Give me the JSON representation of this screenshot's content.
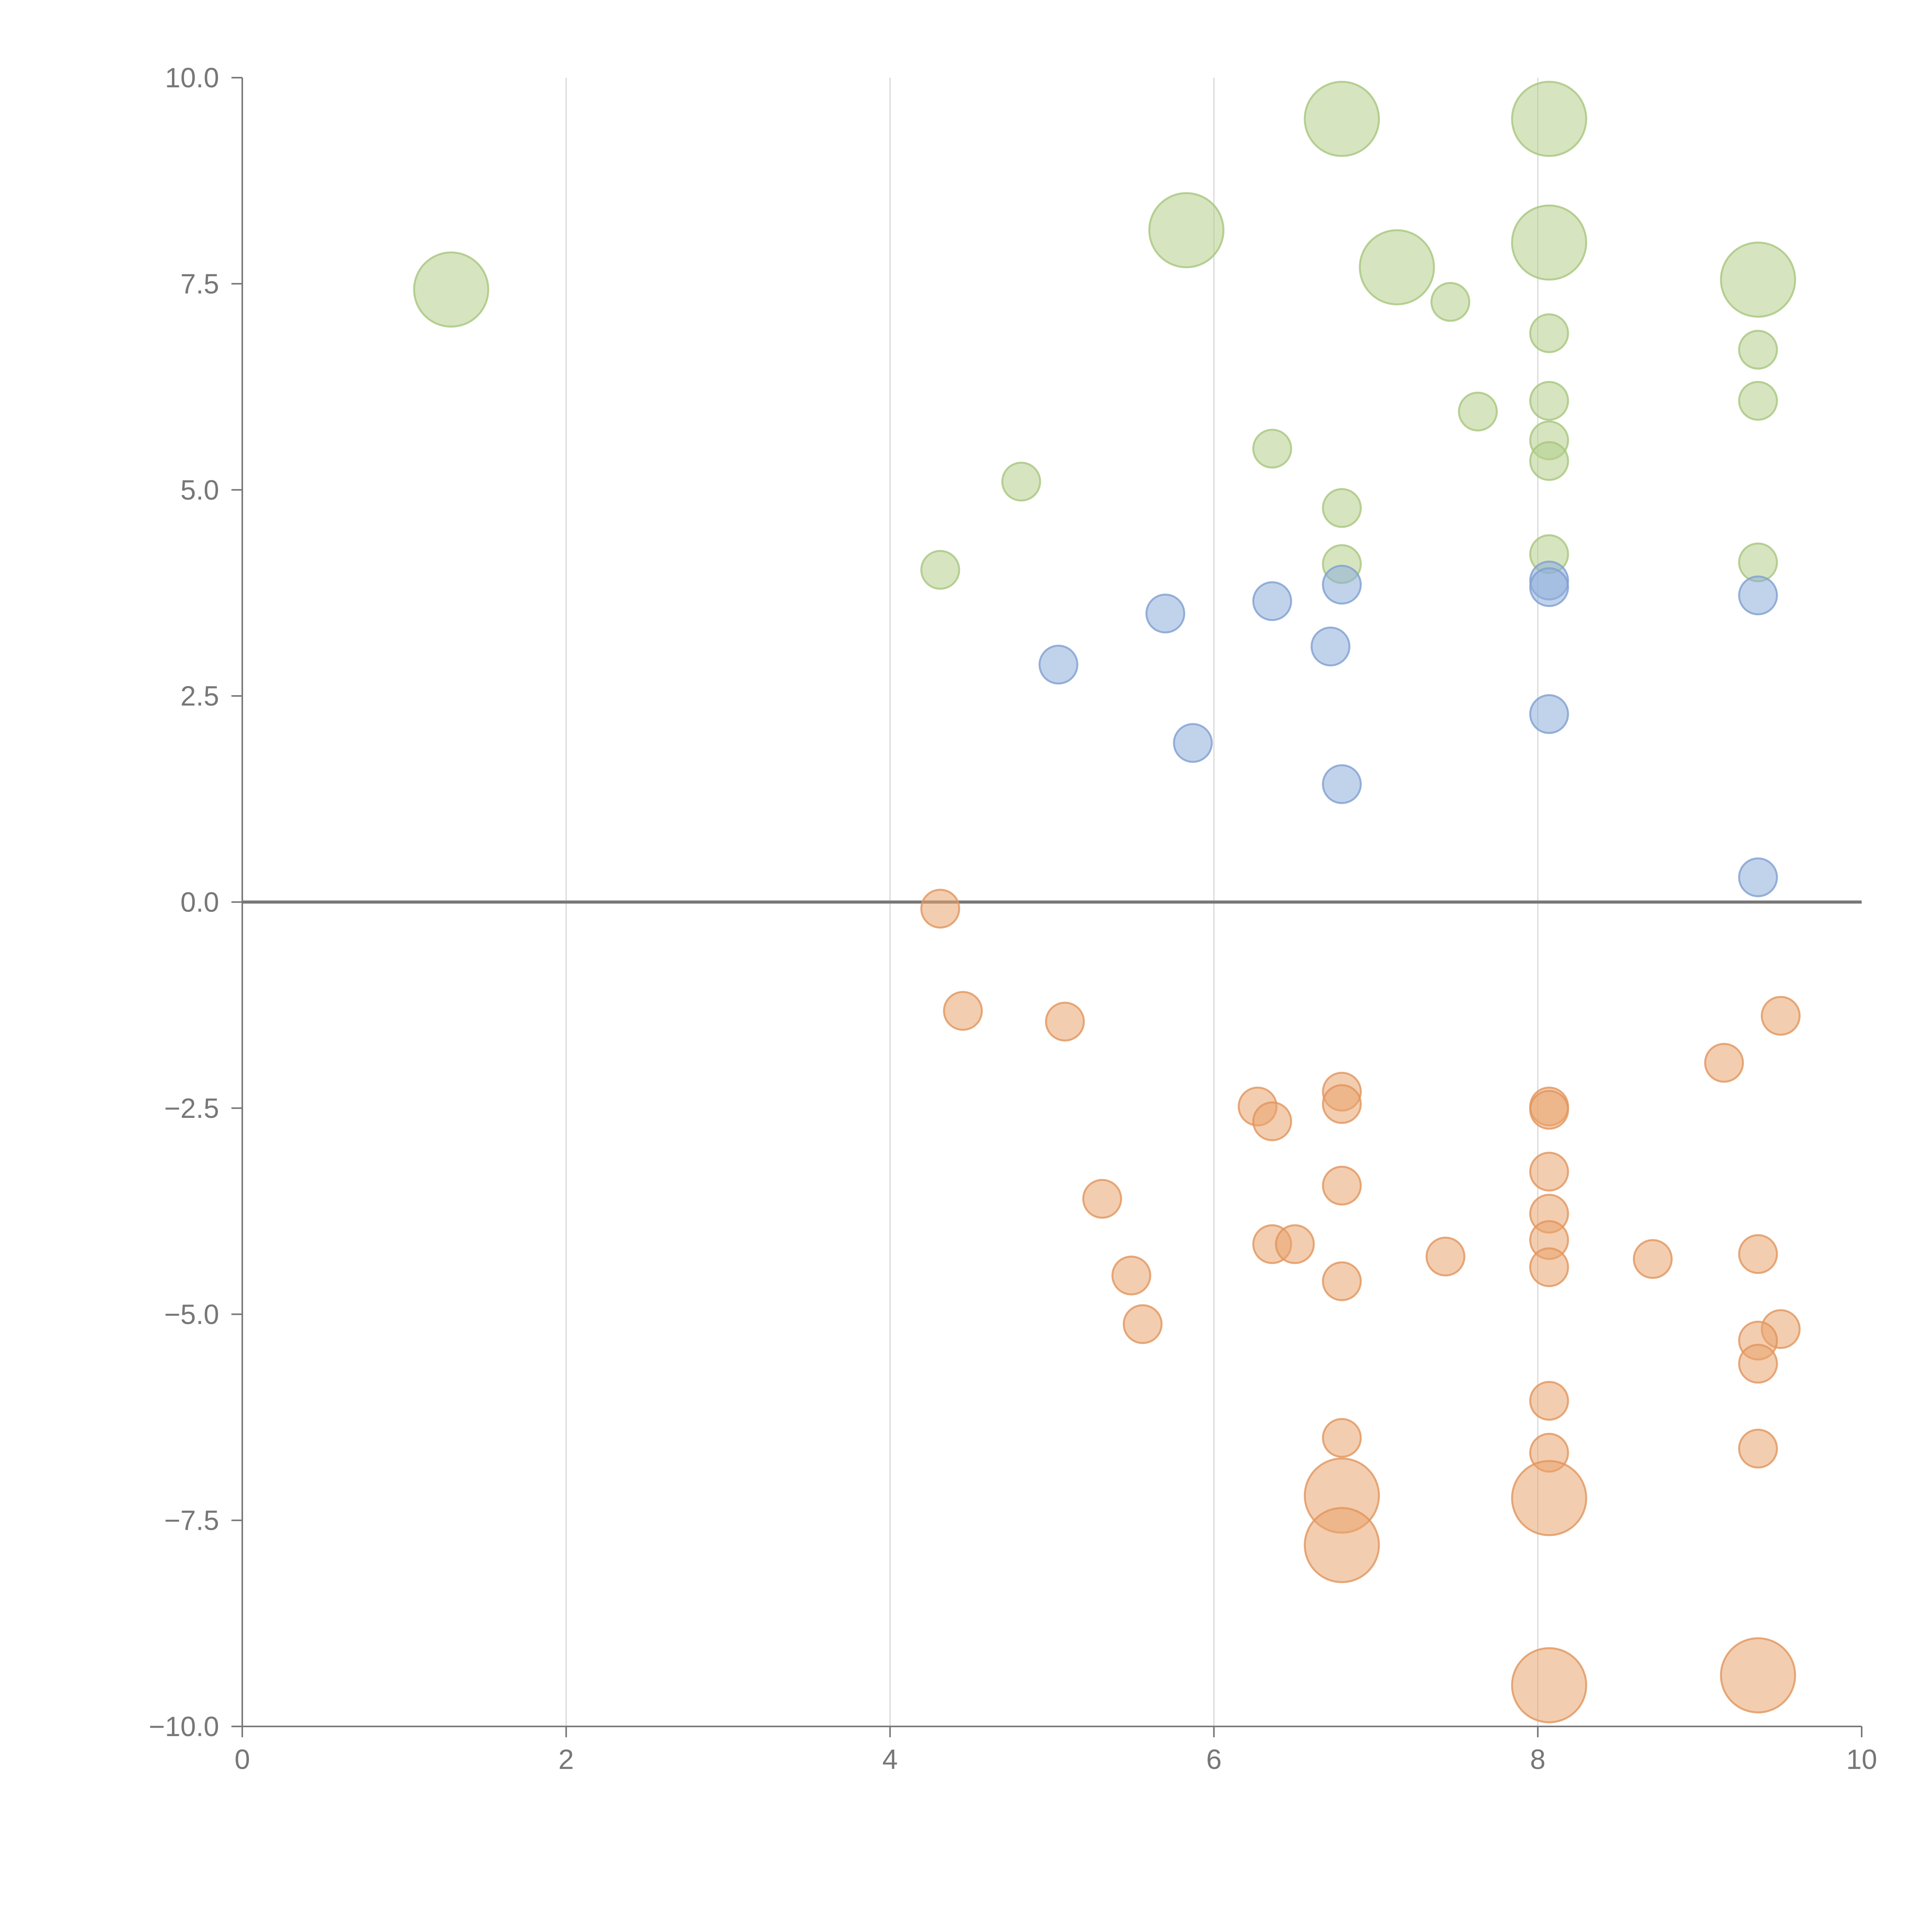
{
  "chart_data": {
    "type": "scatter",
    "title": "",
    "xlabel": "",
    "ylabel": "",
    "xlim": [
      0,
      10
    ],
    "ylim": [
      -10,
      10
    ],
    "x_ticks": [
      0,
      2,
      4,
      6,
      8,
      10
    ],
    "x_tick_labels": [
      "0",
      "2",
      "4",
      "6",
      "8",
      "10"
    ],
    "y_ticks": [
      10,
      7.5,
      5,
      2.5,
      0,
      -2.5,
      -5,
      -7.5,
      -10
    ],
    "y_tick_labels": [
      "10.0",
      "7.5",
      "5.0",
      "2.5",
      "0.0",
      "−2.5",
      "−5.0",
      "−7.5",
      "−10.0"
    ],
    "vertical_grid": true,
    "horizontal_grid": false,
    "zero_line": true,
    "series": [
      {
        "name": "green",
        "fill": "#b5d08c",
        "stroke": "#a7c67d",
        "points": [
          {
            "x": 1.29,
            "y": 7.43,
            "size": "large"
          },
          {
            "x": 5.83,
            "y": 8.15,
            "size": "large"
          },
          {
            "x": 6.79,
            "y": 9.5,
            "size": "large"
          },
          {
            "x": 8.07,
            "y": 9.5,
            "size": "large"
          },
          {
            "x": 8.07,
            "y": 8.0,
            "size": "large"
          },
          {
            "x": 7.13,
            "y": 7.7,
            "size": "large"
          },
          {
            "x": 9.36,
            "y": 7.55,
            "size": "large"
          },
          {
            "x": 7.46,
            "y": 7.28,
            "size": "small"
          },
          {
            "x": 8.07,
            "y": 6.9,
            "size": "small"
          },
          {
            "x": 9.36,
            "y": 6.7,
            "size": "small"
          },
          {
            "x": 8.07,
            "y": 6.08,
            "size": "small"
          },
          {
            "x": 9.36,
            "y": 6.08,
            "size": "small"
          },
          {
            "x": 7.63,
            "y": 5.95,
            "size": "small"
          },
          {
            "x": 8.07,
            "y": 5.6,
            "size": "small"
          },
          {
            "x": 6.36,
            "y": 5.5,
            "size": "small"
          },
          {
            "x": 8.07,
            "y": 5.35,
            "size": "small"
          },
          {
            "x": 4.81,
            "y": 5.1,
            "size": "small"
          },
          {
            "x": 6.79,
            "y": 4.78,
            "size": "small"
          },
          {
            "x": 8.07,
            "y": 4.22,
            "size": "small"
          },
          {
            "x": 9.36,
            "y": 4.12,
            "size": "small"
          },
          {
            "x": 6.79,
            "y": 4.1,
            "size": "small"
          },
          {
            "x": 4.31,
            "y": 4.03,
            "size": "small"
          }
        ]
      },
      {
        "name": "blue",
        "fill": "#8eaedb",
        "stroke": "#7f9fd0",
        "points": [
          {
            "x": 8.07,
            "y": 3.9,
            "size": "small"
          },
          {
            "x": 6.79,
            "y": 3.85,
            "size": "small"
          },
          {
            "x": 8.07,
            "y": 3.82,
            "size": "small"
          },
          {
            "x": 9.36,
            "y": 3.72,
            "size": "small"
          },
          {
            "x": 6.36,
            "y": 3.65,
            "size": "small"
          },
          {
            "x": 5.7,
            "y": 3.5,
            "size": "small"
          },
          {
            "x": 6.72,
            "y": 3.1,
            "size": "small"
          },
          {
            "x": 5.04,
            "y": 2.88,
            "size": "small"
          },
          {
            "x": 8.07,
            "y": 2.28,
            "size": "small"
          },
          {
            "x": 5.87,
            "y": 1.93,
            "size": "small"
          },
          {
            "x": 6.79,
            "y": 1.43,
            "size": "small"
          },
          {
            "x": 9.36,
            "y": 0.3,
            "size": "small"
          }
        ]
      },
      {
        "name": "orange",
        "fill": "#eaa46d",
        "stroke": "#e1955c",
        "points": [
          {
            "x": 4.31,
            "y": -0.08,
            "size": "small"
          },
          {
            "x": 4.45,
            "y": -1.32,
            "size": "small"
          },
          {
            "x": 9.5,
            "y": -1.38,
            "size": "small"
          },
          {
            "x": 5.08,
            "y": -1.45,
            "size": "small"
          },
          {
            "x": 9.15,
            "y": -1.95,
            "size": "small"
          },
          {
            "x": 6.79,
            "y": -2.3,
            "size": "small"
          },
          {
            "x": 6.79,
            "y": -2.45,
            "size": "small"
          },
          {
            "x": 6.27,
            "y": -2.48,
            "size": "small"
          },
          {
            "x": 8.07,
            "y": -2.48,
            "size": "small"
          },
          {
            "x": 8.07,
            "y": -2.52,
            "size": "small"
          },
          {
            "x": 6.36,
            "y": -2.66,
            "size": "small"
          },
          {
            "x": 8.07,
            "y": -3.27,
            "size": "small"
          },
          {
            "x": 6.79,
            "y": -3.44,
            "size": "small"
          },
          {
            "x": 5.31,
            "y": -3.6,
            "size": "small"
          },
          {
            "x": 8.07,
            "y": -3.78,
            "size": "small"
          },
          {
            "x": 6.36,
            "y": -4.15,
            "size": "small"
          },
          {
            "x": 6.5,
            "y": -4.15,
            "size": "small"
          },
          {
            "x": 8.07,
            "y": -4.1,
            "size": "small"
          },
          {
            "x": 9.36,
            "y": -4.27,
            "size": "small"
          },
          {
            "x": 7.43,
            "y": -4.3,
            "size": "small"
          },
          {
            "x": 8.71,
            "y": -4.33,
            "size": "small"
          },
          {
            "x": 8.07,
            "y": -4.43,
            "size": "small"
          },
          {
            "x": 5.49,
            "y": -4.53,
            "size": "small"
          },
          {
            "x": 6.79,
            "y": -4.6,
            "size": "small"
          },
          {
            "x": 5.56,
            "y": -5.12,
            "size": "small"
          },
          {
            "x": 9.5,
            "y": -5.18,
            "size": "small"
          },
          {
            "x": 9.36,
            "y": -5.32,
            "size": "small"
          },
          {
            "x": 9.36,
            "y": -5.6,
            "size": "small"
          },
          {
            "x": 8.07,
            "y": -6.05,
            "size": "small"
          },
          {
            "x": 6.79,
            "y": -6.5,
            "size": "small"
          },
          {
            "x": 9.36,
            "y": -6.63,
            "size": "small"
          },
          {
            "x": 8.07,
            "y": -6.68,
            "size": "small"
          },
          {
            "x": 6.79,
            "y": -7.2,
            "size": "large"
          },
          {
            "x": 8.07,
            "y": -7.23,
            "size": "large"
          },
          {
            "x": 6.79,
            "y": -7.8,
            "size": "large"
          },
          {
            "x": 9.36,
            "y": -9.38,
            "size": "large"
          },
          {
            "x": 8.07,
            "y": -9.5,
            "size": "large"
          }
        ]
      }
    ]
  }
}
